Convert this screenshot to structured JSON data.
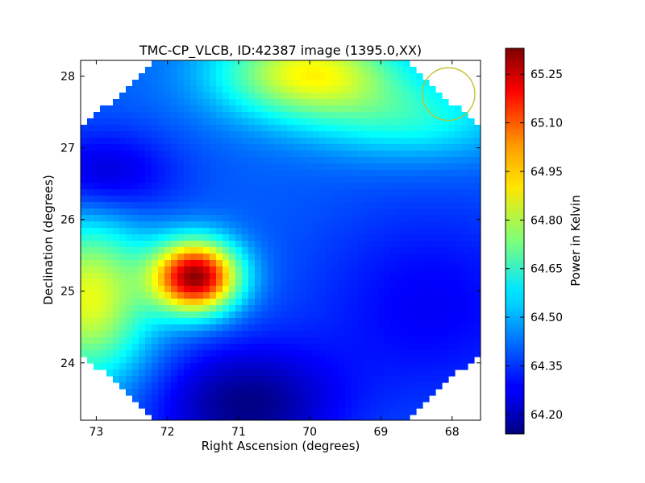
{
  "chart_data": {
    "type": "heatmap",
    "title": "TMC-CP_VLCB, ID:42387 image (1395.0,XX)",
    "xlabel": "Right Ascension (degrees)",
    "ylabel": "Declination (degrees)",
    "xlim": [
      73.22,
      67.6
    ],
    "ylim": [
      23.2,
      28.22
    ],
    "x_ticks": [
      73,
      72,
      71,
      70,
      69,
      68
    ],
    "y_ticks": [
      24,
      25,
      26,
      27,
      28
    ],
    "x_tick_labels": [
      "73",
      "72",
      "71",
      "70",
      "69",
      "68"
    ],
    "y_tick_labels": [
      "24",
      "25",
      "26",
      "27",
      "28"
    ],
    "colormap": "jet",
    "colorbar": {
      "label": "Power in Kelvin",
      "vmin": 64.14,
      "vmax": 65.33,
      "ticks": [
        64.2,
        64.35,
        64.5,
        64.65,
        64.8,
        64.95,
        65.1,
        65.25
      ],
      "tick_labels": [
        "64.20",
        "64.35",
        "64.50",
        "64.65",
        "64.80",
        "64.95",
        "65.10",
        "65.25"
      ]
    },
    "background_level": 64.4,
    "features": [
      {
        "ra": 71.6,
        "dec": 25.2,
        "peak": 65.3,
        "sigma_ra": 0.42,
        "sigma_dec": 0.35
      },
      {
        "ra": 70.9,
        "dec": 23.4,
        "peak": 64.15,
        "sigma_ra": 0.9,
        "sigma_dec": 0.6
      },
      {
        "ra": 70.0,
        "dec": 28.05,
        "peak": 64.88,
        "sigma_ra": 0.9,
        "sigma_dec": 0.45
      },
      {
        "ra": 73.1,
        "dec": 24.9,
        "peak": 64.86,
        "sigma_ra": 0.6,
        "sigma_dec": 0.8
      },
      {
        "ra": 72.9,
        "dec": 26.6,
        "peak": 64.22,
        "sigma_ra": 0.7,
        "sigma_dec": 0.45
      },
      {
        "ra": 68.5,
        "dec": 27.4,
        "peak": 64.6,
        "sigma_ra": 1.0,
        "sigma_dec": 0.4
      },
      {
        "ra": 68.3,
        "dec": 24.8,
        "peak": 64.28,
        "sigma_ra": 1.2,
        "sigma_dec": 1.0
      }
    ],
    "footprint": "octagon",
    "beam_circle": {
      "ra": 68.05,
      "dec": 27.75,
      "radius_deg": 0.37,
      "color": "#bfbf26"
    }
  }
}
